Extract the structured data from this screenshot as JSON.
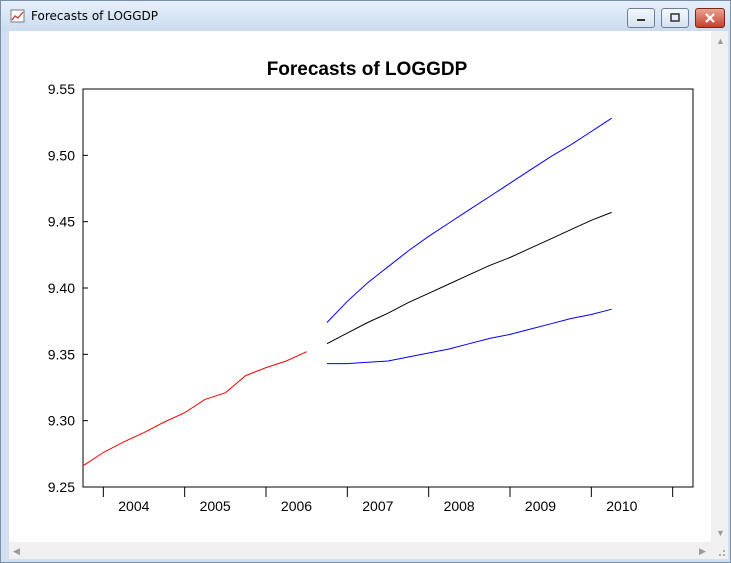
{
  "window": {
    "title": "Forecasts of LOGGDP"
  },
  "chart_data": {
    "type": "line",
    "title": "Forecasts of LOGGDP",
    "xlabel": "",
    "ylabel": "",
    "ylim": [
      9.25,
      9.55
    ],
    "grid": false,
    "legend": "none",
    "yticks": [
      "9.25",
      "9.30",
      "9.35",
      "9.40",
      "9.45",
      "9.50",
      "9.55"
    ],
    "xticks": [
      "2004",
      "2005",
      "2006",
      "2007",
      "2008",
      "2009",
      "2010"
    ],
    "xlim": [
      "2003Q4",
      "2011Q2"
    ],
    "series": [
      {
        "color": "#ff0000",
        "x": [
          "2003Q4",
          "2004Q1",
          "2004Q2",
          "2004Q3",
          "2004Q4",
          "2005Q1",
          "2005Q2",
          "2005Q3",
          "2005Q4",
          "2006Q1",
          "2006Q2",
          "2006Q3"
        ],
        "values": [
          9.266,
          9.276,
          9.284,
          9.291,
          9.299,
          9.306,
          9.316,
          9.321,
          9.334,
          9.34,
          9.345,
          9.352
        ]
      },
      {
        "color": "#000000",
        "x": [
          "2006Q4",
          "2007Q1",
          "2007Q2",
          "2007Q3",
          "2007Q4",
          "2008Q1",
          "2008Q2",
          "2008Q3",
          "2008Q4",
          "2009Q1",
          "2009Q2",
          "2009Q3",
          "2009Q4",
          "2010Q1",
          "2010Q2"
        ],
        "values": [
          9.358,
          9.366,
          9.374,
          9.381,
          9.389,
          9.396,
          9.403,
          9.41,
          9.417,
          9.423,
          9.43,
          9.437,
          9.444,
          9.451,
          9.457
        ]
      },
      {
        "color": "#0000ff",
        "x": [
          "2006Q4",
          "2007Q1",
          "2007Q2",
          "2007Q3",
          "2007Q4",
          "2008Q1",
          "2008Q2",
          "2008Q3",
          "2008Q4",
          "2009Q1",
          "2009Q2",
          "2009Q3",
          "2009Q4",
          "2010Q1",
          "2010Q2"
        ],
        "values": [
          9.374,
          9.39,
          9.404,
          9.416,
          9.428,
          9.439,
          9.449,
          9.459,
          9.469,
          9.479,
          9.489,
          9.499,
          9.508,
          9.518,
          9.528
        ]
      },
      {
        "color": "#0000ff",
        "x": [
          "2006Q4",
          "2007Q1",
          "2007Q2",
          "2007Q3",
          "2007Q4",
          "2008Q1",
          "2008Q2",
          "2008Q3",
          "2008Q4",
          "2009Q1",
          "2009Q2",
          "2009Q3",
          "2009Q4",
          "2010Q1",
          "2010Q2"
        ],
        "values": [
          9.343,
          9.343,
          9.344,
          9.345,
          9.348,
          9.351,
          9.354,
          9.358,
          9.362,
          9.365,
          9.369,
          9.373,
          9.377,
          9.38,
          9.384
        ]
      }
    ]
  }
}
